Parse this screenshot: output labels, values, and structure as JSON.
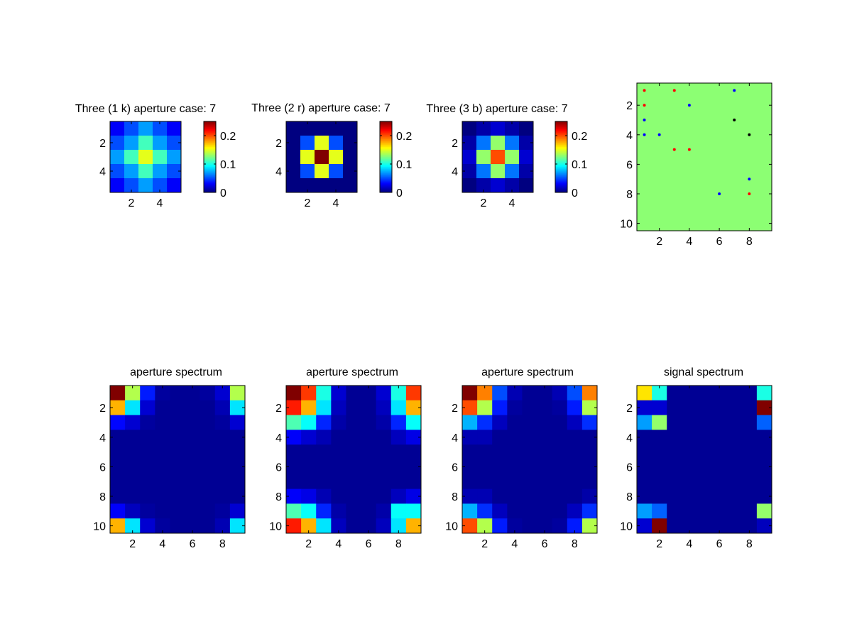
{
  "window": {
    "title": ""
  },
  "chart_data": [
    {
      "type": "heatmap",
      "title": "Three (1 k) aperture case: 7",
      "xticks": [
        2,
        4
      ],
      "yticks": [
        2,
        4
      ],
      "xlim": [
        0.5,
        5.5
      ],
      "ylim": [
        0.5,
        5.5
      ],
      "colorbar": {
        "ticks": [
          "0",
          "0.1",
          "0.2"
        ],
        "clim": [
          0,
          0.25
        ]
      },
      "z": [
        [
          0.03,
          0.05,
          0.07,
          0.05,
          0.03
        ],
        [
          0.05,
          0.07,
          0.11,
          0.07,
          0.05
        ],
        [
          0.07,
          0.11,
          0.15,
          0.11,
          0.07
        ],
        [
          0.05,
          0.07,
          0.11,
          0.07,
          0.05
        ],
        [
          0.03,
          0.05,
          0.07,
          0.05,
          0.03
        ]
      ]
    },
    {
      "type": "heatmap",
      "title": "Three (2 r) aperture case: 7",
      "xticks": [
        2,
        4
      ],
      "yticks": [
        2,
        4
      ],
      "xlim": [
        0.5,
        5.5
      ],
      "ylim": [
        0.5,
        5.5
      ],
      "colorbar": {
        "ticks": [
          "0",
          "0.1",
          "0.2"
        ],
        "clim": [
          0,
          0.25
        ]
      },
      "z": [
        [
          0,
          0,
          0,
          0,
          0
        ],
        [
          0,
          0.05,
          0.15,
          0.05,
          0
        ],
        [
          0,
          0.15,
          0.25,
          0.15,
          0
        ],
        [
          0,
          0.05,
          0.15,
          0.05,
          0
        ],
        [
          0,
          0,
          0,
          0,
          0
        ]
      ]
    },
    {
      "type": "heatmap",
      "title": "Three (3 b) aperture case: 7",
      "xticks": [
        2,
        4
      ],
      "yticks": [
        2,
        4
      ],
      "xlim": [
        0.5,
        5.5
      ],
      "ylim": [
        0.5,
        5.5
      ],
      "colorbar": {
        "ticks": [
          "0",
          "0.1",
          "0.2"
        ],
        "clim": [
          0,
          0.25
        ]
      },
      "z": [
        [
          0,
          0.01,
          0.02,
          0.01,
          0
        ],
        [
          0.01,
          0.06,
          0.13,
          0.06,
          0.01
        ],
        [
          0.02,
          0.13,
          0.2,
          0.13,
          0.02
        ],
        [
          0.01,
          0.06,
          0.13,
          0.06,
          0.01
        ],
        [
          0,
          0.01,
          0.02,
          0.01,
          0
        ]
      ]
    },
    {
      "type": "scatter",
      "title": "",
      "background": "#8cff73",
      "xticks": [
        2,
        4,
        6,
        8
      ],
      "yticks": [
        2,
        4,
        6,
        8,
        10
      ],
      "xlim": [
        0.5,
        9.5
      ],
      "ylim": [
        0.5,
        10.5
      ],
      "y_reversed": true,
      "series": [
        {
          "color": "#ff0000",
          "points": [
            [
              1,
              1
            ],
            [
              3,
              1
            ],
            [
              1,
              2
            ],
            [
              3,
              5
            ],
            [
              4,
              5
            ],
            [
              8,
              8
            ]
          ]
        },
        {
          "color": "#0000ff",
          "points": [
            [
              7,
              1
            ],
            [
              4,
              2
            ],
            [
              1,
              3
            ],
            [
              1,
              4
            ],
            [
              2,
              4
            ],
            [
              8,
              7
            ],
            [
              6,
              8
            ]
          ]
        },
        {
          "color": "#000000",
          "points": [
            [
              7,
              3
            ],
            [
              8,
              4
            ]
          ]
        }
      ]
    },
    {
      "type": "heatmap",
      "title": "aperture spectrum",
      "xticks": [
        2,
        4,
        6,
        8
      ],
      "yticks": [
        2,
        4,
        6,
        8,
        10
      ],
      "xlim": [
        0.5,
        9.5
      ],
      "ylim": [
        0.5,
        10.5
      ],
      "z": [
        [
          1.0,
          0.55,
          0.15,
          0.03,
          0.02,
          0.02,
          0.03,
          0.08,
          0.55
        ],
        [
          0.7,
          0.35,
          0.08,
          0.02,
          0.02,
          0.02,
          0.02,
          0.05,
          0.35
        ],
        [
          0.13,
          0.08,
          0.03,
          0.02,
          0.02,
          0.02,
          0.02,
          0.03,
          0.08
        ],
        [
          0.02,
          0.02,
          0.02,
          0.02,
          0.02,
          0.02,
          0.02,
          0.02,
          0.02
        ],
        [
          0.02,
          0.02,
          0.02,
          0.02,
          0.02,
          0.02,
          0.02,
          0.02,
          0.02
        ],
        [
          0.02,
          0.02,
          0.02,
          0.02,
          0.02,
          0.02,
          0.02,
          0.02,
          0.02
        ],
        [
          0.02,
          0.02,
          0.02,
          0.02,
          0.02,
          0.02,
          0.02,
          0.02,
          0.02
        ],
        [
          0.02,
          0.02,
          0.02,
          0.02,
          0.02,
          0.02,
          0.02,
          0.02,
          0.02
        ],
        [
          0.12,
          0.06,
          0.03,
          0.02,
          0.02,
          0.02,
          0.02,
          0.03,
          0.08
        ],
        [
          0.7,
          0.35,
          0.08,
          0.03,
          0.02,
          0.02,
          0.02,
          0.05,
          0.35
        ]
      ]
    },
    {
      "type": "heatmap",
      "title": "aperture spectrum",
      "xticks": [
        2,
        4,
        6,
        8
      ],
      "yticks": [
        2,
        4,
        6,
        8,
        10
      ],
      "xlim": [
        0.5,
        9.5
      ],
      "ylim": [
        0.5,
        10.5
      ],
      "z": [
        [
          1.0,
          0.82,
          0.4,
          0.08,
          0.02,
          0.02,
          0.08,
          0.4,
          0.82
        ],
        [
          0.85,
          0.7,
          0.35,
          0.06,
          0.02,
          0.02,
          0.06,
          0.35,
          0.7
        ],
        [
          0.45,
          0.38,
          0.16,
          0.04,
          0.02,
          0.02,
          0.04,
          0.16,
          0.38
        ],
        [
          0.12,
          0.08,
          0.05,
          0.02,
          0.02,
          0.02,
          0.02,
          0.06,
          0.1
        ],
        [
          0.02,
          0.02,
          0.02,
          0.02,
          0.02,
          0.02,
          0.02,
          0.02,
          0.02
        ],
        [
          0.02,
          0.02,
          0.02,
          0.02,
          0.02,
          0.02,
          0.02,
          0.02,
          0.02
        ],
        [
          0.02,
          0.02,
          0.02,
          0.02,
          0.02,
          0.02,
          0.02,
          0.02,
          0.02
        ],
        [
          0.12,
          0.1,
          0.05,
          0.02,
          0.02,
          0.02,
          0.02,
          0.06,
          0.1
        ],
        [
          0.45,
          0.38,
          0.16,
          0.04,
          0.02,
          0.02,
          0.04,
          0.38,
          0.38
        ],
        [
          0.85,
          0.7,
          0.35,
          0.06,
          0.02,
          0.02,
          0.06,
          0.35,
          0.7
        ]
      ]
    },
    {
      "type": "heatmap",
      "title": "aperture spectrum",
      "xticks": [
        2,
        4,
        6,
        8
      ],
      "yticks": [
        2,
        4,
        6,
        8,
        10
      ],
      "xlim": [
        0.5,
        9.5
      ],
      "ylim": [
        0.5,
        10.5
      ],
      "z": [
        [
          1.0,
          0.75,
          0.2,
          0.05,
          0.02,
          0.02,
          0.05,
          0.2,
          0.75
        ],
        [
          0.8,
          0.55,
          0.15,
          0.03,
          0.02,
          0.02,
          0.03,
          0.15,
          0.55
        ],
        [
          0.3,
          0.17,
          0.06,
          0.02,
          0.02,
          0.02,
          0.02,
          0.06,
          0.17
        ],
        [
          0.05,
          0.05,
          0.02,
          0.02,
          0.02,
          0.02,
          0.02,
          0.02,
          0.02
        ],
        [
          0.02,
          0.02,
          0.02,
          0.02,
          0.02,
          0.02,
          0.02,
          0.02,
          0.02
        ],
        [
          0.02,
          0.02,
          0.02,
          0.02,
          0.02,
          0.02,
          0.02,
          0.02,
          0.02
        ],
        [
          0.02,
          0.02,
          0.02,
          0.02,
          0.02,
          0.02,
          0.02,
          0.02,
          0.02
        ],
        [
          0.05,
          0.05,
          0.02,
          0.02,
          0.02,
          0.02,
          0.02,
          0.02,
          0.04
        ],
        [
          0.3,
          0.17,
          0.06,
          0.02,
          0.02,
          0.02,
          0.02,
          0.06,
          0.17
        ],
        [
          0.8,
          0.55,
          0.15,
          0.03,
          0.02,
          0.02,
          0.03,
          0.15,
          0.55
        ]
      ]
    },
    {
      "type": "heatmap",
      "title": "signal spectrum",
      "xticks": [
        2,
        4,
        6,
        8
      ],
      "yticks": [
        2,
        4,
        6,
        8,
        10
      ],
      "xlim": [
        0.5,
        9.5
      ],
      "ylim": [
        0.5,
        10.5
      ],
      "z": [
        [
          0.65,
          0.4,
          0.02,
          0.02,
          0.02,
          0.02,
          0.02,
          0.02,
          0.4
        ],
        [
          0.08,
          0.08,
          0.02,
          0.02,
          0.02,
          0.02,
          0.02,
          0.02,
          1.0
        ],
        [
          0.28,
          0.52,
          0.02,
          0.02,
          0.02,
          0.02,
          0.02,
          0.02,
          0.22
        ],
        [
          0.02,
          0.02,
          0.02,
          0.02,
          0.02,
          0.02,
          0.02,
          0.02,
          0.02
        ],
        [
          0.02,
          0.02,
          0.02,
          0.02,
          0.02,
          0.02,
          0.02,
          0.02,
          0.02
        ],
        [
          0.02,
          0.02,
          0.02,
          0.02,
          0.02,
          0.02,
          0.02,
          0.02,
          0.02
        ],
        [
          0.02,
          0.02,
          0.02,
          0.02,
          0.02,
          0.02,
          0.02,
          0.02,
          0.02
        ],
        [
          0.02,
          0.02,
          0.02,
          0.02,
          0.02,
          0.02,
          0.02,
          0.02,
          0.02
        ],
        [
          0.28,
          0.22,
          0.02,
          0.02,
          0.02,
          0.02,
          0.02,
          0.02,
          0.52
        ],
        [
          0.08,
          1.0,
          0.02,
          0.02,
          0.02,
          0.02,
          0.02,
          0.02,
          0.06
        ]
      ]
    }
  ]
}
